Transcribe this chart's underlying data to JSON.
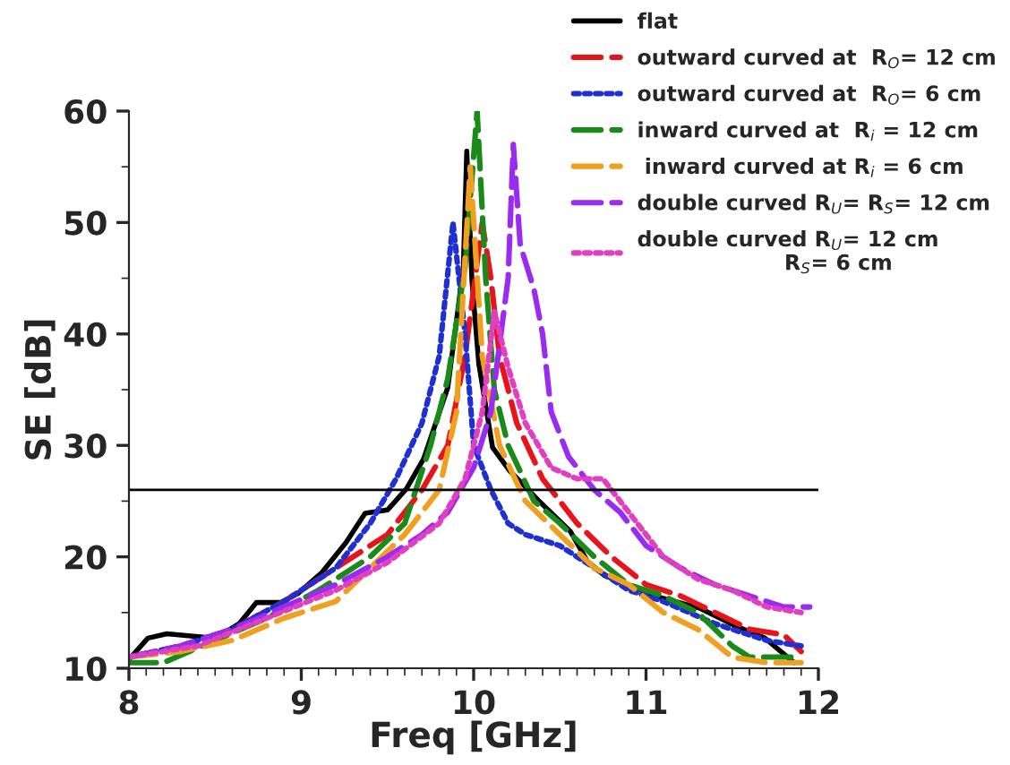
{
  "chart_data": {
    "type": "line",
    "xlabel": "Freq [GHz]",
    "ylabel": "SE [dB]",
    "xlim": [
      8,
      12
    ],
    "ylim": [
      10,
      60
    ],
    "xticks": [
      8,
      9,
      10,
      11,
      12
    ],
    "yticks": [
      10,
      20,
      30,
      40,
      50,
      60
    ],
    "grid": false,
    "legend": "top right",
    "ref_lines": [
      {
        "axis": "y",
        "value": 26,
        "color": "#000000",
        "line_style": "solid"
      }
    ],
    "series": [
      {
        "name": "flat",
        "color": "#000000",
        "line_style": "solid",
        "x": [
          8.0,
          8.11,
          8.22,
          8.5,
          8.64,
          8.74,
          8.88,
          8.98,
          9.12,
          9.26,
          9.37,
          9.5,
          9.61,
          9.71,
          9.85,
          9.94,
          9.96,
          9.99,
          10.03,
          10.11,
          10.21,
          10.38,
          10.56,
          10.66,
          10.76,
          10.9,
          11.07,
          11.31,
          11.52,
          11.69,
          11.86
        ],
        "values": [
          10.8,
          12.7,
          13.1,
          12.7,
          14,
          15.9,
          15.9,
          16.7,
          18.6,
          21.3,
          23.9,
          24.2,
          26.1,
          28.8,
          35.2,
          45.9,
          56.4,
          44.8,
          37.3,
          29.8,
          27.7,
          25,
          22.3,
          19.6,
          18.3,
          17.5,
          16.4,
          15.4,
          13.8,
          12.7,
          10.5
        ]
      },
      {
        "name": "outward curved at  R$_{O}$= 12 cm",
        "color": "#e8141c",
        "line_style": "dashed",
        "x": [
          8.0,
          8.3,
          8.6,
          8.9,
          9.2,
          9.5,
          9.7,
          9.85,
          9.95,
          10.05,
          10.1,
          10.15,
          10.25,
          10.4,
          10.6,
          10.8,
          11.0,
          11.2,
          11.4,
          11.6,
          11.8,
          11.9
        ],
        "values": [
          11,
          12,
          13.5,
          16,
          19,
          22,
          26,
          30,
          38,
          50,
          45,
          38,
          32,
          27,
          23,
          20,
          17.5,
          16.5,
          15,
          13.5,
          13,
          11.5
        ]
      },
      {
        "name": "outward curved at  R$_{O}$= 6 cm",
        "color": "#1f2fd0",
        "line_style": "dotted",
        "x": [
          8.0,
          8.3,
          8.6,
          8.9,
          9.2,
          9.4,
          9.55,
          9.7,
          9.8,
          9.88,
          9.95,
          10.0,
          10.1,
          10.2,
          10.3,
          10.5,
          10.7,
          10.9,
          11.1,
          11.4,
          11.7,
          11.9
        ],
        "values": [
          11,
          12,
          13.5,
          16,
          19,
          23,
          27,
          32,
          38,
          50,
          40,
          30,
          26,
          23,
          22,
          21,
          19,
          17,
          16,
          14,
          12.5,
          12
        ]
      },
      {
        "name": "inward curved at  R$_{i}$ = 12 cm",
        "color": "#1a8a1a",
        "line_style": "dashed",
        "x": [
          8.0,
          8.2,
          8.5,
          8.8,
          9.1,
          9.4,
          9.6,
          9.75,
          9.85,
          9.95,
          10.02,
          10.07,
          10.12,
          10.2,
          10.35,
          10.5,
          10.7,
          10.9,
          11.1,
          11.3,
          11.5,
          11.6,
          11.85
        ],
        "values": [
          10.5,
          10.5,
          12.5,
          14.5,
          17,
          20,
          23,
          30,
          36,
          46,
          60,
          45,
          35,
          30,
          25,
          23,
          20,
          17.5,
          16.5,
          15,
          12,
          11,
          11
        ]
      },
      {
        "name": " inward curved at R$_{i}$ = 6 cm",
        "color": "#f0a020",
        "line_style": "dashed",
        "x": [
          8.0,
          8.3,
          8.6,
          8.9,
          9.2,
          9.4,
          9.6,
          9.8,
          9.9,
          9.98,
          10.05,
          10.15,
          10.3,
          10.5,
          10.7,
          10.9,
          11.1,
          11.3,
          11.5,
          11.7,
          11.9
        ],
        "values": [
          11,
          11.5,
          12.5,
          14.5,
          16,
          19,
          22,
          26,
          33,
          55,
          38,
          30,
          25,
          22,
          19,
          17.5,
          15,
          13.5,
          11,
          10.5,
          10.5
        ]
      },
      {
        "name": "double curved R$_{U}$= R$_{S}$= 12 cm",
        "color": "#9a2bf0",
        "line_style": "dashed",
        "x": [
          8.0,
          8.3,
          8.6,
          8.9,
          9.2,
          9.5,
          9.7,
          9.85,
          10.0,
          10.1,
          10.2,
          10.23,
          10.27,
          10.35,
          10.4,
          10.45,
          10.55,
          10.7,
          10.85,
          11.0,
          11.2,
          11.4,
          11.6,
          11.8,
          11.95
        ],
        "values": [
          11,
          12,
          13.5,
          15.5,
          17.5,
          20,
          22,
          24,
          28,
          33,
          45,
          57,
          48,
          44,
          40,
          33,
          29,
          26,
          24,
          21,
          19,
          17.5,
          16.5,
          15.5,
          15.5
        ]
      },
      {
        "name": "double curved R$_{U}$= 12 cm\n                    R$_{S}$= 6 cm",
        "color": "#e040c0",
        "line_style": "dotted",
        "x": [
          8.0,
          8.4,
          8.8,
          9.2,
          9.5,
          9.8,
          9.95,
          10.05,
          10.12,
          10.2,
          10.3,
          10.45,
          10.6,
          10.75,
          10.9,
          11.1,
          11.3,
          11.5,
          11.7,
          11.9
        ],
        "values": [
          11,
          12,
          14.5,
          17,
          19.5,
          23,
          27,
          33,
          42,
          37,
          32,
          28,
          27,
          27,
          24,
          20,
          18,
          17,
          15.5,
          15
        ]
      }
    ]
  }
}
